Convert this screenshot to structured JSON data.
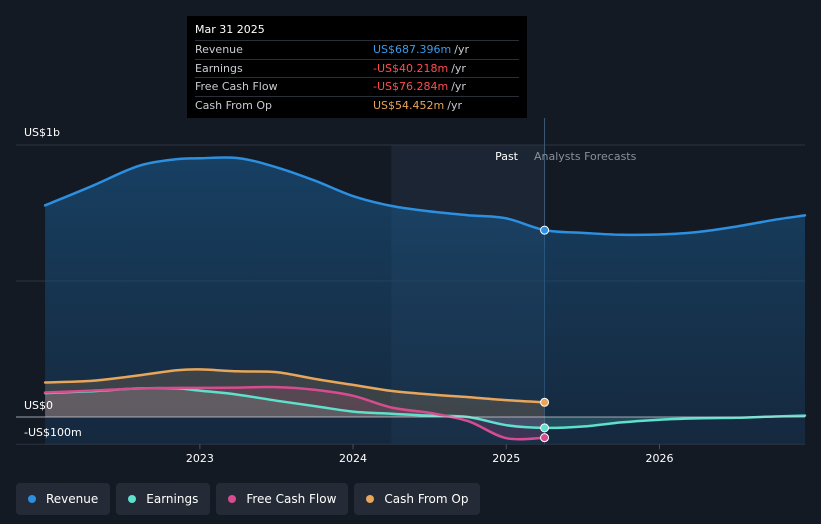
{
  "tooltip": {
    "date": "Mar 31 2025",
    "rows": [
      {
        "label": "Revenue",
        "value": "US$687.396m",
        "unit": "/yr",
        "color": "#3b9ae8"
      },
      {
        "label": "Earnings",
        "value": "-US$40.218m",
        "unit": "/yr",
        "color": "#ff4d4f"
      },
      {
        "label": "Free Cash Flow",
        "value": "-US$76.284m",
        "unit": "/yr",
        "color": "#ff4d4f"
      },
      {
        "label": "Cash From Op",
        "value": "US$54.452m",
        "unit": "/yr",
        "color": "#e8a65a"
      }
    ]
  },
  "chart_data": {
    "type": "line",
    "past_label": "Past",
    "forecast_label": "Analysts Forecasts",
    "y_labels": {
      "top": "US$1b",
      "zero": "US$0",
      "bottom": "-US$100m"
    },
    "ylim": [
      -100,
      1000
    ],
    "x_ticks": [
      {
        "label": "2023",
        "value": 2023.0
      },
      {
        "label": "2024",
        "value": 2024.0
      },
      {
        "label": "2025",
        "value": 2025.0
      },
      {
        "label": "2026",
        "value": 2026.0
      }
    ],
    "xlim": [
      2021.8,
      2026.95
    ],
    "past_start": 2024.25,
    "divider": 2025.25,
    "series": [
      {
        "name": "Revenue",
        "color": "#2d8fe0",
        "area": true,
        "points": [
          [
            2021.99,
            778
          ],
          [
            2022.3,
            850
          ],
          [
            2022.6,
            923
          ],
          [
            2022.85,
            948
          ],
          [
            2023.0,
            951
          ],
          [
            2023.25,
            952
          ],
          [
            2023.5,
            918
          ],
          [
            2023.75,
            869
          ],
          [
            2024.0,
            812
          ],
          [
            2024.25,
            776
          ],
          [
            2024.5,
            756
          ],
          [
            2024.75,
            742
          ],
          [
            2025.0,
            730
          ],
          [
            2025.25,
            687
          ],
          [
            2025.5,
            677
          ],
          [
            2025.75,
            670
          ],
          [
            2026.0,
            671
          ],
          [
            2026.25,
            680
          ],
          [
            2026.5,
            700
          ],
          [
            2026.75,
            725
          ],
          [
            2026.95,
            741
          ]
        ]
      },
      {
        "name": "Earnings",
        "color": "#5ee0cc",
        "area": true,
        "points": [
          [
            2021.99,
            88
          ],
          [
            2022.3,
            95
          ],
          [
            2022.6,
            105
          ],
          [
            2022.85,
            105
          ],
          [
            2023.0,
            97
          ],
          [
            2023.25,
            82
          ],
          [
            2023.5,
            60
          ],
          [
            2023.75,
            40
          ],
          [
            2024.0,
            20
          ],
          [
            2024.25,
            12
          ],
          [
            2024.5,
            5
          ],
          [
            2024.75,
            0
          ],
          [
            2025.0,
            -30
          ],
          [
            2025.25,
            -40
          ],
          [
            2025.5,
            -35
          ],
          [
            2025.75,
            -20
          ],
          [
            2026.0,
            -10
          ],
          [
            2026.25,
            -5
          ],
          [
            2026.5,
            -3
          ],
          [
            2026.75,
            2
          ],
          [
            2026.95,
            5
          ]
        ]
      },
      {
        "name": "Free Cash Flow",
        "color": "#d64d8f",
        "area": true,
        "points": [
          [
            2021.99,
            90
          ],
          [
            2022.3,
            97
          ],
          [
            2022.6,
            105
          ],
          [
            2022.85,
            107
          ],
          [
            2023.0,
            107
          ],
          [
            2023.25,
            108
          ],
          [
            2023.5,
            110
          ],
          [
            2023.75,
            100
          ],
          [
            2024.0,
            78
          ],
          [
            2024.25,
            35
          ],
          [
            2024.5,
            15
          ],
          [
            2024.75,
            -15
          ],
          [
            2025.0,
            -78
          ],
          [
            2025.25,
            -76
          ]
        ]
      },
      {
        "name": "Cash From Op",
        "color": "#e8a65a",
        "area": true,
        "points": [
          [
            2021.99,
            127
          ],
          [
            2022.3,
            133
          ],
          [
            2022.6,
            153
          ],
          [
            2022.85,
            172
          ],
          [
            2023.0,
            175
          ],
          [
            2023.25,
            168
          ],
          [
            2023.5,
            165
          ],
          [
            2023.75,
            140
          ],
          [
            2024.0,
            118
          ],
          [
            2024.25,
            96
          ],
          [
            2024.5,
            83
          ],
          [
            2024.75,
            73
          ],
          [
            2025.0,
            62
          ],
          [
            2025.25,
            54
          ]
        ]
      }
    ]
  },
  "legend": [
    {
      "label": "Revenue",
      "color": "#2d8fe0"
    },
    {
      "label": "Earnings",
      "color": "#5ee0cc"
    },
    {
      "label": "Free Cash Flow",
      "color": "#d64d8f"
    },
    {
      "label": "Cash From Op",
      "color": "#e8a65a"
    }
  ]
}
